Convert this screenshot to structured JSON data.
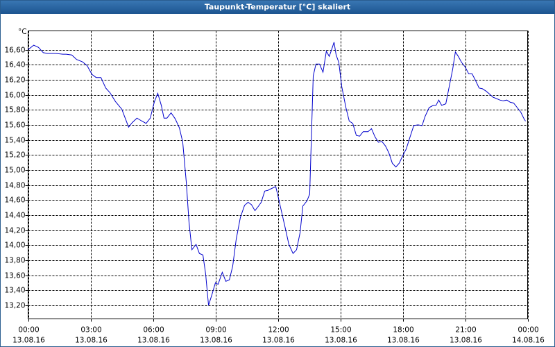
{
  "chart_data": {
    "type": "line",
    "title": "Taupunkt-Temperatur [°C] skaliert",
    "y_unit": "°C",
    "color": "#0000cc",
    "grid": true,
    "xlim": [
      0,
      24
    ],
    "ylim": [
      13.02,
      16.85
    ],
    "xticks": [
      {
        "value": 0,
        "label": "00:00"
      },
      {
        "value": 3,
        "label": "03:00"
      },
      {
        "value": 6,
        "label": "06:00"
      },
      {
        "value": 9,
        "label": "09:00"
      },
      {
        "value": 12,
        "label": "12:00"
      },
      {
        "value": 15,
        "label": "15:00"
      },
      {
        "value": 18,
        "label": "18:00"
      },
      {
        "value": 21,
        "label": "21:00"
      },
      {
        "value": 24,
        "label": "00:00"
      }
    ],
    "xtick_dates": [
      "13.08.16",
      "13.08.16",
      "13.08.16",
      "13.08.16",
      "13.08.16",
      "13.08.16",
      "13.08.16",
      "13.08.16",
      "14.08.16"
    ],
    "yticks": [
      {
        "value": 13.2,
        "label": "13,20"
      },
      {
        "value": 13.4,
        "label": "13,40"
      },
      {
        "value": 13.6,
        "label": "13,60"
      },
      {
        "value": 13.8,
        "label": "13,80"
      },
      {
        "value": 14.0,
        "label": "14,00"
      },
      {
        "value": 14.2,
        "label": "14,20"
      },
      {
        "value": 14.4,
        "label": "14,40"
      },
      {
        "value": 14.6,
        "label": "14,60"
      },
      {
        "value": 14.8,
        "label": "14,80"
      },
      {
        "value": 15.0,
        "label": "15,00"
      },
      {
        "value": 15.2,
        "label": "15,20"
      },
      {
        "value": 15.4,
        "label": "15,40"
      },
      {
        "value": 15.6,
        "label": "15,60"
      },
      {
        "value": 15.8,
        "label": "15,80"
      },
      {
        "value": 16.0,
        "label": "16,00"
      },
      {
        "value": 16.2,
        "label": "16,20"
      },
      {
        "value": 16.4,
        "label": "16,40"
      },
      {
        "value": 16.6,
        "label": "16,60"
      }
    ],
    "x": [
      0,
      0.27,
      0.5,
      0.73,
      0.93,
      1.33,
      1.67,
      1.83,
      2.1,
      2.33,
      2.6,
      2.83,
      3.07,
      3.27,
      3.5,
      3.73,
      3.93,
      4.2,
      4.5,
      4.83,
      5.0,
      5.23,
      5.47,
      5.67,
      5.87,
      6.07,
      6.23,
      6.4,
      6.53,
      6.67,
      6.87,
      7.07,
      7.27,
      7.43,
      7.6,
      7.73,
      7.87,
      8.07,
      8.23,
      8.4,
      8.53,
      8.67,
      8.83,
      9.0,
      9.13,
      9.33,
      9.5,
      9.67,
      9.83,
      10.0,
      10.2,
      10.4,
      10.57,
      10.73,
      10.9,
      11.07,
      11.2,
      11.37,
      11.53,
      11.67,
      11.9,
      12.1,
      12.33,
      12.53,
      12.73,
      12.9,
      13.07,
      13.2,
      13.4,
      13.53,
      13.7,
      13.83,
      14.0,
      14.17,
      14.33,
      14.47,
      14.57,
      14.7,
      14.8,
      14.93,
      15.07,
      15.27,
      15.43,
      15.6,
      15.77,
      15.93,
      16.1,
      16.33,
      16.5,
      16.67,
      16.83,
      17.0,
      17.17,
      17.33,
      17.5,
      17.67,
      17.83,
      18.0,
      18.17,
      18.33,
      18.53,
      18.73,
      18.93,
      19.07,
      19.27,
      19.47,
      19.6,
      19.73,
      19.87,
      20.07,
      20.27,
      20.4,
      20.53,
      20.67,
      20.83,
      21.0,
      21.17,
      21.33,
      21.5,
      21.67,
      21.83,
      22.0,
      22.17,
      22.33,
      22.5,
      22.67,
      22.83,
      23.0,
      23.17,
      23.33,
      23.5,
      23.67,
      23.83,
      23.9
    ],
    "values": [
      16.6,
      16.66,
      16.63,
      16.56,
      16.55,
      16.55,
      16.54,
      16.54,
      16.53,
      16.47,
      16.44,
      16.39,
      16.27,
      16.23,
      16.23,
      16.09,
      16.03,
      15.91,
      15.81,
      15.57,
      15.63,
      15.69,
      15.65,
      15.62,
      15.69,
      15.91,
      16.02,
      15.86,
      15.69,
      15.69,
      15.76,
      15.68,
      15.56,
      15.37,
      14.84,
      14.31,
      13.94,
      14.01,
      13.89,
      13.87,
      13.62,
      13.2,
      13.34,
      13.5,
      13.48,
      13.64,
      13.52,
      13.54,
      13.72,
      14.08,
      14.37,
      14.53,
      14.57,
      14.54,
      14.46,
      14.52,
      14.57,
      14.72,
      14.73,
      14.75,
      14.78,
      14.54,
      14.26,
      14.01,
      13.89,
      13.94,
      14.17,
      14.52,
      14.59,
      14.68,
      16.25,
      16.41,
      16.41,
      16.3,
      16.58,
      16.51,
      16.59,
      16.7,
      16.53,
      16.43,
      16.11,
      15.83,
      15.65,
      15.62,
      15.46,
      15.45,
      15.51,
      15.51,
      15.55,
      15.44,
      15.37,
      15.38,
      15.32,
      15.23,
      15.09,
      15.04,
      15.09,
      15.19,
      15.28,
      15.42,
      15.59,
      15.6,
      15.59,
      15.71,
      15.83,
      15.86,
      15.86,
      15.93,
      15.86,
      15.88,
      16.16,
      16.34,
      16.57,
      16.51,
      16.43,
      16.37,
      16.28,
      16.28,
      16.19,
      16.09,
      16.08,
      16.05,
      16.01,
      15.97,
      15.95,
      15.93,
      15.92,
      15.93,
      15.9,
      15.89,
      15.83,
      15.77,
      15.68,
      15.65
    ]
  }
}
